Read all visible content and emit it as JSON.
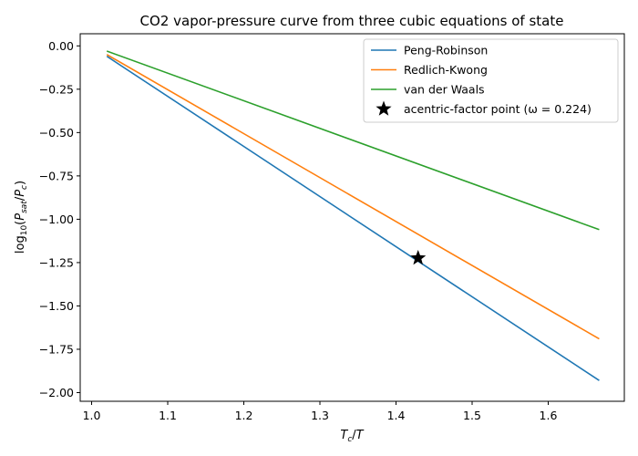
{
  "chart_data": {
    "type": "line",
    "title": "CO2 vapor-pressure curve from three cubic equations of state",
    "xlabel": "T_c/T",
    "ylabel": "log10(P_sat/P_c)",
    "xlim": [
      0.985,
      1.7
    ],
    "ylim": [
      -2.05,
      0.07
    ],
    "xticks": [
      1.0,
      1.1,
      1.2,
      1.3,
      1.4,
      1.5,
      1.6
    ],
    "xtick_labels": [
      "1.0",
      "1.1",
      "1.2",
      "1.3",
      "1.4",
      "1.5",
      "1.6"
    ],
    "yticks": [
      0.0,
      -0.25,
      -0.5,
      -0.75,
      -1.0,
      -1.25,
      -1.5,
      -1.75,
      -2.0
    ],
    "ytick_labels": [
      "0.00",
      "−0.25",
      "−0.50",
      "−0.75",
      "−1.00",
      "−1.25",
      "−1.50",
      "−1.75",
      "−2.00"
    ],
    "grid": false,
    "legend_position": "top-right",
    "series": [
      {
        "name": "Peng-Robinson",
        "color": "#1f77b4",
        "x": [
          1.02,
          1.667
        ],
        "y": [
          -0.06,
          -1.93
        ]
      },
      {
        "name": "Redlich-Kwong",
        "color": "#ff7f0e",
        "x": [
          1.02,
          1.667
        ],
        "y": [
          -0.05,
          -1.69
        ]
      },
      {
        "name": "van der Waals",
        "color": "#2ca02c",
        "x": [
          1.02,
          1.667
        ],
        "y": [
          -0.03,
          -1.06
        ]
      }
    ],
    "marker": {
      "name": "acentric-factor point (ω = 0.224)",
      "color": "#000000",
      "x": 1.429,
      "y": -1.224
    }
  }
}
